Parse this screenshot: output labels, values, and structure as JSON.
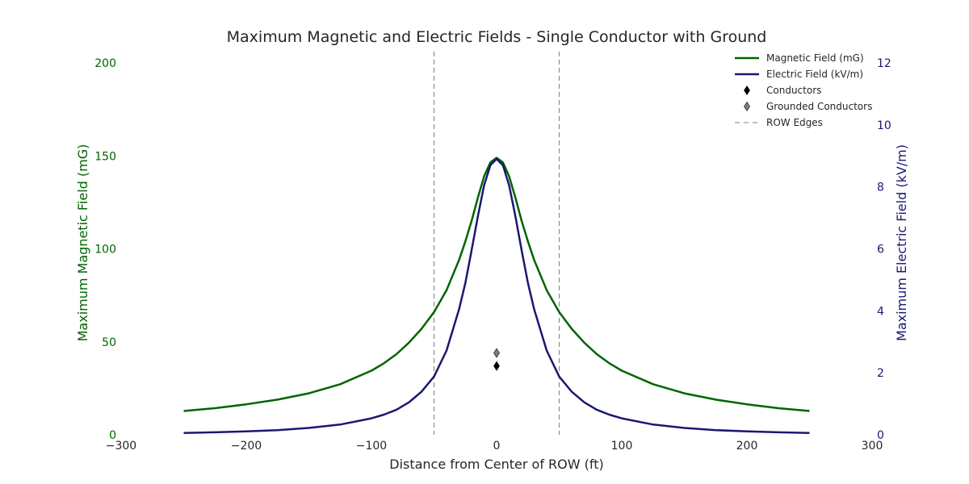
{
  "chart_data": {
    "type": "line",
    "title": "Maximum Magnetic and Electric Fields - Single Conductor with Ground",
    "xlabel": "Distance from Center of ROW (ft)",
    "ylabel_left": "Maximum Magnetic Field (mG)",
    "ylabel_right": "Maximum Electric Field (kV/m)",
    "xlim": [
      -300,
      300
    ],
    "ylim_left": [
      0,
      200
    ],
    "ylim_right": [
      0,
      12
    ],
    "xticks": [
      -300,
      -200,
      -100,
      0,
      100,
      200,
      300
    ],
    "xtick_labels": [
      "−300",
      "−200",
      "−100",
      "0",
      "100",
      "200",
      "300"
    ],
    "yticks_left": [
      0,
      50,
      100,
      150,
      200
    ],
    "ytick_labels_left": [
      "0",
      "50",
      "100",
      "150",
      "200"
    ],
    "yticks_right": [
      0,
      2,
      4,
      6,
      8,
      10,
      12
    ],
    "ytick_labels_right": [
      "0",
      "2",
      "4",
      "6",
      "8",
      "10",
      "12"
    ],
    "grid": false,
    "legend_placement": "top-right",
    "series": [
      {
        "name": "Magnetic Field (mG)",
        "axis": "left",
        "color": "#006400",
        "x": [
          -250,
          -225,
          -200,
          -175,
          -150,
          -125,
          -100,
          -90,
          -80,
          -70,
          -60,
          -50,
          -40,
          -30,
          -25,
          -20,
          -15,
          -10,
          -5,
          0,
          5,
          10,
          15,
          20,
          25,
          30,
          40,
          50,
          60,
          70,
          80,
          90,
          100,
          125,
          150,
          175,
          200,
          225,
          250
        ],
        "y": [
          12.8,
          14.3,
          16.4,
          18.9,
          22.3,
          27.2,
          34.5,
          38.5,
          43.4,
          49.6,
          57.0,
          66.0,
          77.8,
          94.0,
          104.0,
          115.0,
          127.5,
          139.0,
          146.5,
          149.0,
          146.5,
          139.0,
          127.5,
          115.0,
          104.0,
          94.0,
          77.8,
          66.0,
          57.0,
          49.6,
          43.4,
          38.5,
          34.5,
          27.2,
          22.3,
          18.9,
          16.4,
          14.3,
          12.8
        ]
      },
      {
        "name": "Electric Field (kV/m)",
        "axis": "right",
        "color": "#191970",
        "x": [
          -250,
          -225,
          -200,
          -175,
          -150,
          -125,
          -100,
          -90,
          -80,
          -70,
          -60,
          -50,
          -40,
          -30,
          -25,
          -20,
          -15,
          -10,
          -5,
          0,
          5,
          10,
          15,
          20,
          25,
          30,
          40,
          50,
          60,
          70,
          80,
          90,
          100,
          125,
          150,
          175,
          200,
          225,
          250
        ],
        "y": [
          0.06,
          0.08,
          0.11,
          0.15,
          0.22,
          0.33,
          0.53,
          0.65,
          0.81,
          1.05,
          1.39,
          1.88,
          2.72,
          4.05,
          4.9,
          5.95,
          7.05,
          8.05,
          8.7,
          8.9,
          8.7,
          8.05,
          7.05,
          5.95,
          4.9,
          4.05,
          2.72,
          1.88,
          1.39,
          1.05,
          0.81,
          0.65,
          0.53,
          0.33,
          0.22,
          0.15,
          0.11,
          0.08,
          0.06
        ]
      }
    ],
    "markers": [
      {
        "name": "Conductors",
        "axis": "left",
        "x": 0,
        "y": 37,
        "color": "#000000"
      },
      {
        "name": "Grounded Conductors",
        "axis": "left",
        "x": 0,
        "y": 44,
        "color": "#808080"
      }
    ],
    "vlines": {
      "name": "ROW Edges",
      "x": [
        -50,
        50
      ],
      "color": "#808080"
    },
    "legend": [
      {
        "label": "Magnetic Field (mG)",
        "kind": "line",
        "color": "#006400"
      },
      {
        "label": "Electric Field (kV/m)",
        "kind": "line",
        "color": "#191970"
      },
      {
        "label": "Conductors",
        "kind": "diamond",
        "color": "#000000"
      },
      {
        "label": "Grounded Conductors",
        "kind": "diamond",
        "color": "#808080"
      },
      {
        "label": "ROW Edges",
        "kind": "dashed",
        "color": "#808080"
      }
    ],
    "colors": {
      "left_axis": "#006400",
      "right_axis": "#191970",
      "text": "#262626"
    }
  }
}
